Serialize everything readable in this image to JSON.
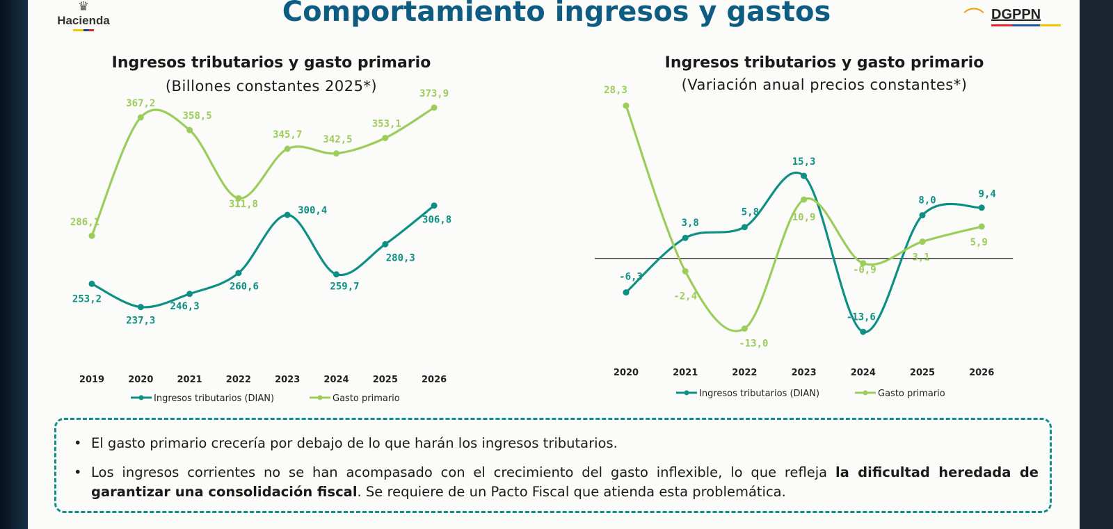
{
  "header": {
    "title": "Comportamiento ingresos y gastos",
    "left_logo_text": "Hacienda",
    "right_logo_text": "DGPPN"
  },
  "colors": {
    "ingresos": "#0e8f84",
    "gasto": "#9ccc5c",
    "title": "#0e5c82",
    "box_border": "#0f8f86"
  },
  "chart_data": [
    {
      "type": "line",
      "title": "Ingresos tributarios y gasto primario",
      "subtitle": "(Billones constantes 2025*)",
      "categories": [
        "2019",
        "2020",
        "2021",
        "2022",
        "2023",
        "2024",
        "2025",
        "2026"
      ],
      "ylim": [
        200,
        400
      ],
      "series": [
        {
          "name": "Ingresos tributarios (DIAN)",
          "values": [
            253.2,
            237.3,
            246.3,
            260.6,
            300.4,
            259.7,
            280.3,
            306.8
          ],
          "labels": [
            "253,2",
            "237,3",
            "246,3",
            "260,6",
            "300,4",
            "259,7",
            "280,3",
            "306,8"
          ]
        },
        {
          "name": "Gasto primario",
          "values": [
            286.1,
            367.2,
            358.5,
            311.8,
            345.7,
            342.5,
            353.1,
            373.9
          ],
          "labels": [
            "286,1",
            "367,2",
            "358,5",
            "311,8",
            "345,7",
            "342,5",
            "353,1",
            "373,9"
          ]
        }
      ],
      "legend": "bottom"
    },
    {
      "type": "line",
      "title": "Ingresos tributarios y gasto primario",
      "subtitle": "(Variación anual precios constantes*)",
      "categories": [
        "2020",
        "2021",
        "2022",
        "2023",
        "2024",
        "2025",
        "2026"
      ],
      "ylim": [
        -20,
        35
      ],
      "series": [
        {
          "name": "Ingresos tributarios (DIAN)",
          "values": [
            -6.3,
            3.8,
            5.8,
            15.3,
            -13.6,
            8.0,
            9.4
          ],
          "labels": [
            "-6,3",
            "3,8",
            "5,8",
            "15,3",
            "-13,6",
            "8,0",
            "9,4"
          ]
        },
        {
          "name": "Gasto primario",
          "values": [
            28.3,
            -2.4,
            -13.0,
            10.9,
            -0.9,
            3.1,
            5.9
          ],
          "labels": [
            "28,3",
            "-2,4",
            "-13,0",
            "10,9",
            "-0,9",
            "3,1",
            "5,9"
          ]
        }
      ],
      "legend": "bottom"
    }
  ],
  "notes": {
    "bullet_char": "•",
    "b1": "El gasto primario crecería por debajo de lo que harán los ingresos tributarios.",
    "b2_pre": "Los ingresos corrientes no se han acompasado con el crecimiento del gasto inflexible, lo que refleja ",
    "b2_bold": "la dificultad heredada de garantizar una consolidación fiscal",
    "b2_post": ". Se requiere de un Pacto Fiscal que atienda esta problemática."
  }
}
